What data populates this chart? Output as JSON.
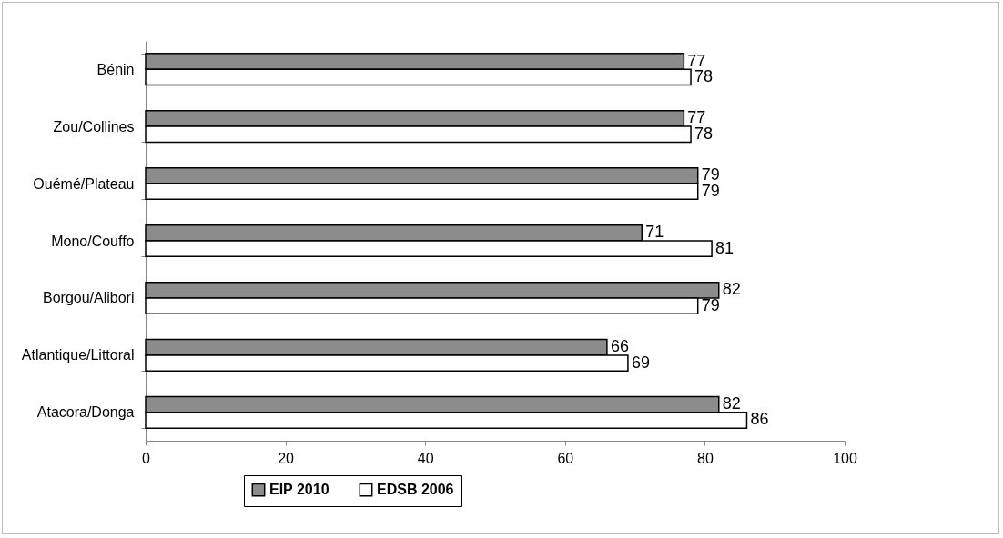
{
  "chart_data": {
    "type": "bar",
    "orientation": "horizontal",
    "categories": [
      "Bénin",
      "Zou/Collines",
      "Ouémé/Plateau",
      "Mono/Couffo",
      "Borgou/Alibori",
      "Atlantique/Littoral",
      "Atacora/Donga"
    ],
    "series": [
      {
        "name": "EIP 2010",
        "color": "#8c8c8c",
        "values": [
          77,
          77,
          79,
          71,
          82,
          66,
          82
        ]
      },
      {
        "name": "EDSB 2006",
        "color": "#ffffff",
        "values": [
          78,
          78,
          79,
          81,
          79,
          69,
          86
        ]
      }
    ],
    "xlim": [
      0,
      100
    ],
    "xticks": [
      0,
      20,
      40,
      60,
      80,
      100
    ],
    "data_labels": true,
    "grid": false,
    "legend": "bottom"
  }
}
